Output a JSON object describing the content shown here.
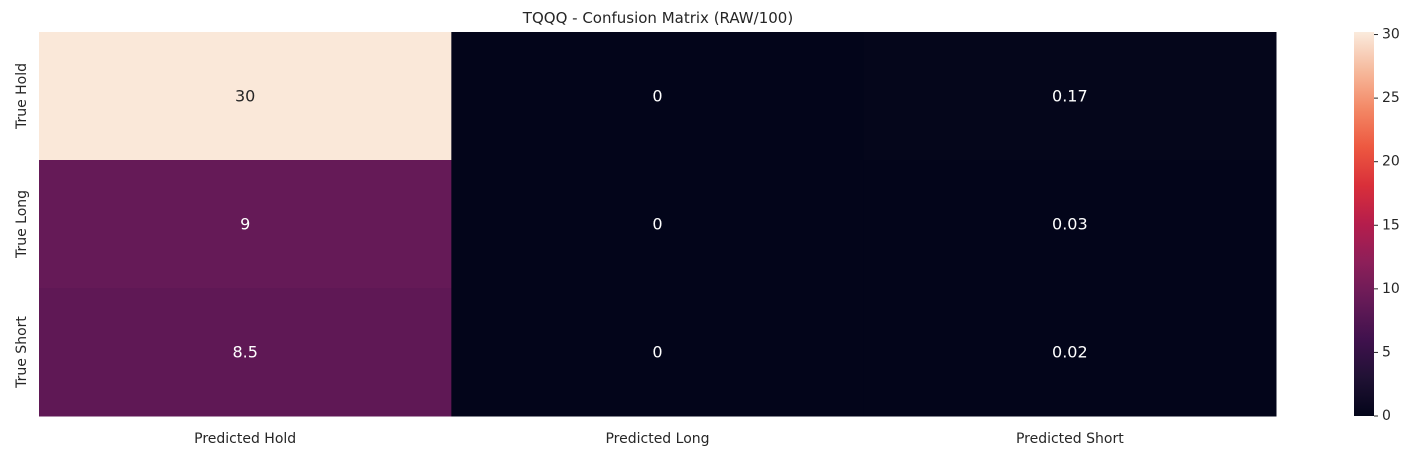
{
  "chart_data": {
    "type": "heatmap",
    "title": "TQQQ - Confusion Matrix (RAW/100)",
    "xlabel": "",
    "ylabel": "",
    "x_categories": [
      "Predicted Hold",
      "Predicted Long",
      "Predicted Short"
    ],
    "y_categories": [
      "True Hold",
      "True Long",
      "True Short"
    ],
    "values": [
      [
        30,
        0,
        0.17
      ],
      [
        9,
        0,
        0.03
      ],
      [
        8.5,
        0,
        0.02
      ]
    ],
    "annotations": [
      [
        "30",
        "0",
        "0.17"
      ],
      [
        "9",
        "0",
        "0.03"
      ],
      [
        "8.5",
        "0",
        "0.02"
      ]
    ],
    "colorbar": {
      "min": 0,
      "max": 30.2,
      "ticks": [
        0,
        5,
        10,
        15,
        20,
        25,
        30
      ],
      "colormap": "rocket"
    },
    "grid": false
  }
}
